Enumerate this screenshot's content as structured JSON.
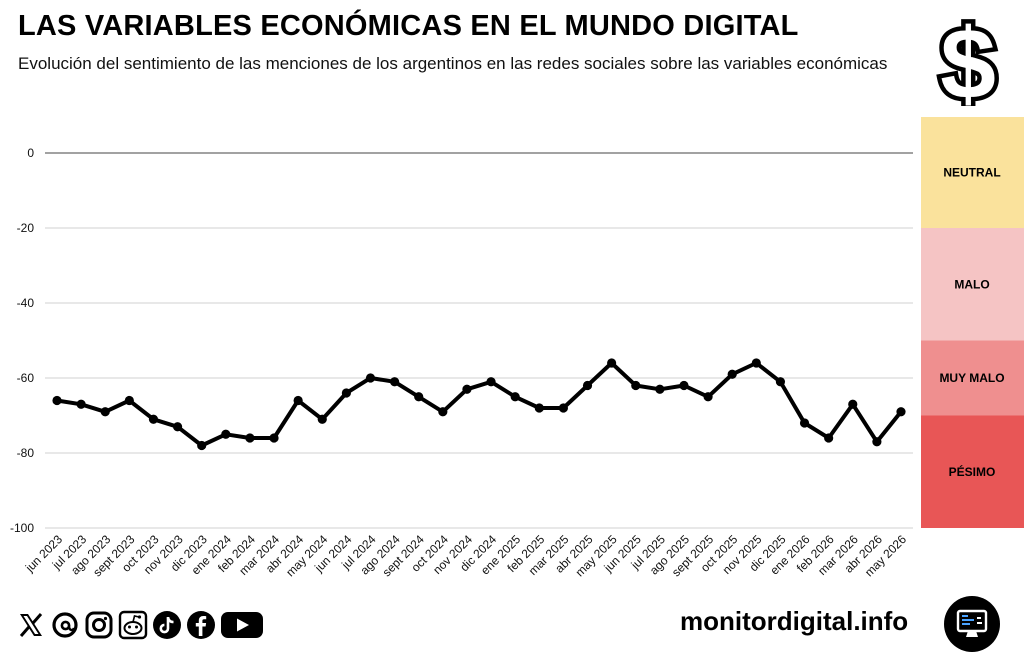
{
  "header": {
    "title": "LAS VARIABLES ECONÓMICAS EN EL MUNDO DIGITAL",
    "subtitle": "Evolución del sentimiento de las menciones de los argentinos en las redes sociales sobre las variables económicas"
  },
  "footer": {
    "site": "monitordigital.info",
    "social_icons": [
      "x-icon",
      "threads-icon",
      "instagram-icon",
      "reddit-icon",
      "tiktok-icon",
      "facebook-icon",
      "youtube-icon"
    ]
  },
  "colors": {
    "line": "#000000",
    "neutral": "#FAE29C",
    "malo": "#F5C4C4",
    "muy_malo": "#EF8F8F",
    "pesimo": "#E85656"
  },
  "chart_data": {
    "type": "line",
    "title": "LAS VARIABLES ECONÓMICAS EN EL MUNDO DIGITAL",
    "subtitle": "Evolución del sentimiento de las menciones de los argentinos en las redes sociales sobre las variables económicas",
    "xlabel": "",
    "ylabel": "",
    "ylim": [
      -100,
      0
    ],
    "yticks": [
      0,
      -20,
      -40,
      -60,
      -80,
      -100
    ],
    "grid": true,
    "categories": [
      "jun 2023",
      "jul 2023",
      "ago 2023",
      "sept 2023",
      "oct 2023",
      "nov 2023",
      "dic 2023",
      "ene 2024",
      "feb 2024",
      "mar 2024",
      "abr 2024",
      "may 2024",
      "jun 2024",
      "jul 2024",
      "ago 2024",
      "sept 2024",
      "oct 2024",
      "nov 2024",
      "dic 2024",
      "ene 2025",
      "feb 2025",
      "mar 2025",
      "abr 2025",
      "may 2025",
      "jun 2025",
      "jul 2025",
      "ago 2025",
      "sept 2025",
      "oct 2025",
      "nov 2025",
      "dic 2025",
      "ene 2026",
      "feb 2026",
      "mar 2026",
      "abr 2026",
      "may 2026"
    ],
    "series": [
      {
        "name": "",
        "values": [
          -66,
          -67,
          -69,
          -66,
          -71,
          -73,
          -78,
          -75,
          -76,
          -76,
          -66,
          -71,
          -64,
          -60,
          -61,
          -65,
          -69,
          -63,
          -61,
          -65,
          -68,
          -68,
          -62,
          -56,
          -62,
          -63,
          -62,
          -65,
          -59,
          -56,
          -61,
          -72,
          -76,
          -67,
          -77,
          -69
        ]
      }
    ],
    "bands": [
      {
        "label": "NEUTRAL",
        "from": 0,
        "to": -20
      },
      {
        "label": "MALO",
        "from": -20,
        "to": -50
      },
      {
        "label": "MUY MALO",
        "from": -50,
        "to": -70
      },
      {
        "label": "PÉSIMO",
        "from": -70,
        "to": -100
      }
    ]
  }
}
